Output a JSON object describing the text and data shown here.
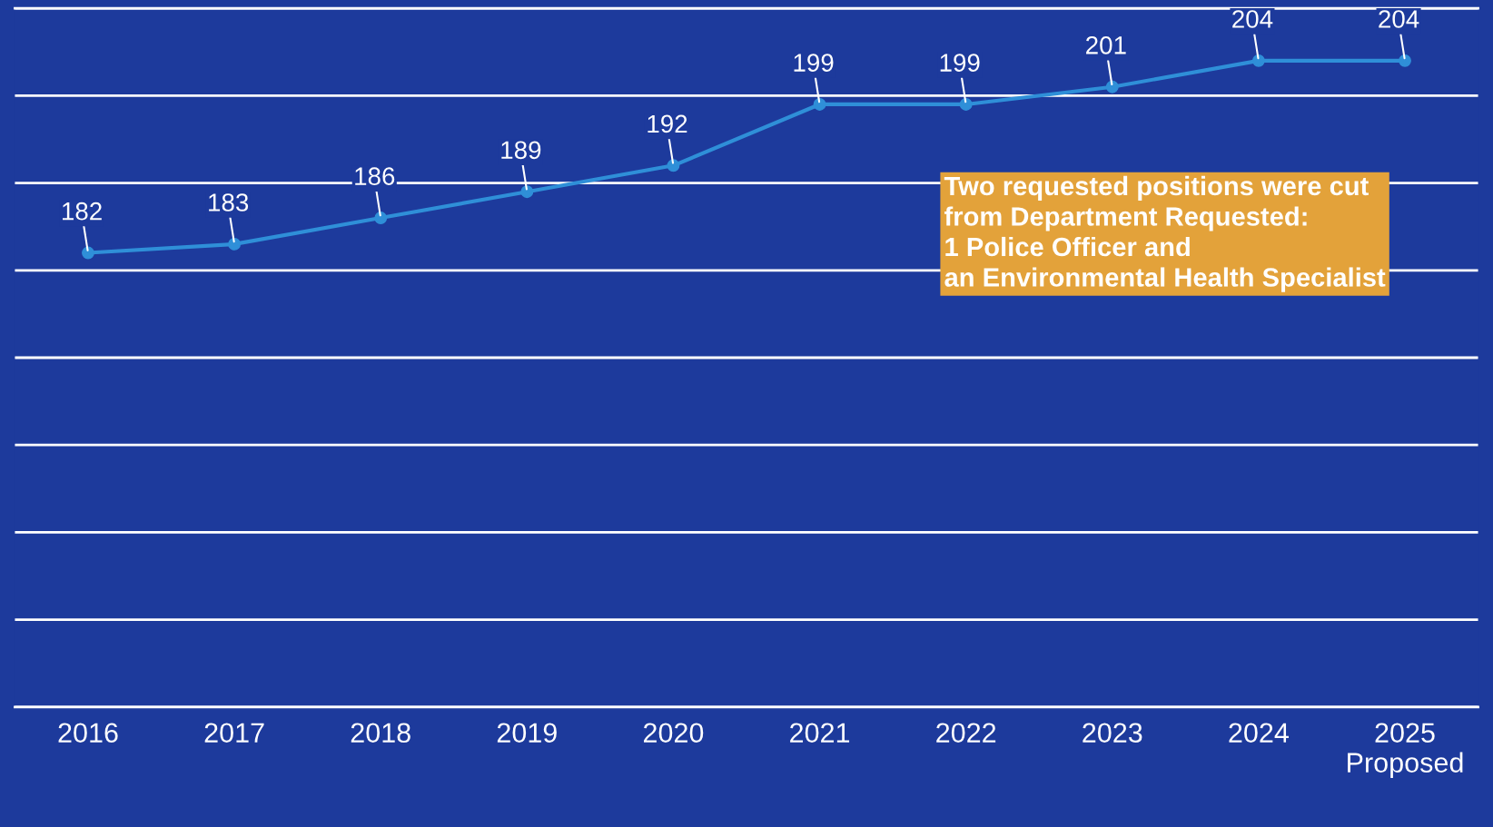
{
  "chart_data": {
    "type": "line",
    "categories": [
      "2016",
      "2017",
      "2018",
      "2019",
      "2020",
      "2021",
      "2022",
      "2023",
      "2024",
      "2025\nProposed"
    ],
    "series": [
      {
        "color": "#2f8fd8",
        "values": [
          182,
          183,
          186,
          189,
          192,
          199,
          199,
          201,
          204,
          204
        ]
      }
    ],
    "ylim": [
      130,
      210
    ],
    "yticks": [
      {
        "value": 130,
        "label": null
      },
      {
        "value": 140,
        "label": null
      },
      {
        "value": 150,
        "label": null
      },
      {
        "value": 160,
        "label": null
      },
      {
        "value": 170,
        "label": null
      },
      {
        "value": 180,
        "label": null
      },
      {
        "value": 190,
        "label": null
      },
      {
        "value": 200,
        "label": null
      },
      {
        "value": 210,
        "label": null
      }
    ],
    "grid": "y",
    "tick_labels": "x",
    "marker": "circle",
    "line_style": "solid",
    "data_labels": true,
    "annotations": [
      "Two requested positions were cut\nfrom Department Requested:\n1 Police Officer and\nan Environmental Health Specialist"
    ]
  }
}
